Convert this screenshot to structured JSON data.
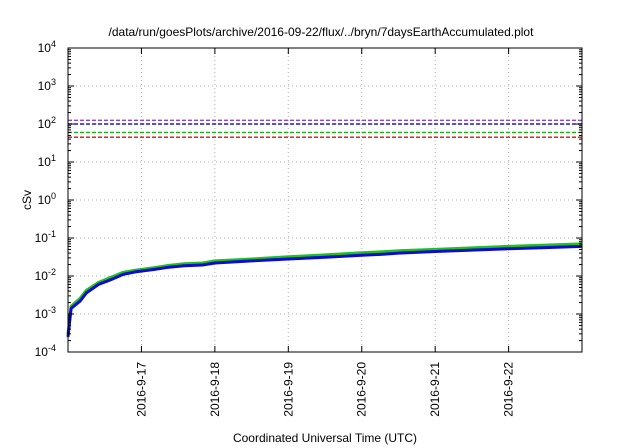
{
  "chart_data": {
    "type": "line",
    "title": "/data/run/goesPlots/archive/2016-09-22/flux/../bryn/7daysEarthAccumulated.plot",
    "xlabel": "Coordinated Universal Time (UTC)",
    "ylabel": "cSv",
    "yscale": "log",
    "ylim": [
      0.0001,
      10000
    ],
    "xlim": [
      "2016-09-16T00:00",
      "2016-09-22T23:59"
    ],
    "grid": true,
    "legend": "none",
    "y_ticks": [
      {
        "base": "10",
        "exp": "-4",
        "value": 0.0001
      },
      {
        "base": "10",
        "exp": "-3",
        "value": 0.001
      },
      {
        "base": "10",
        "exp": "-2",
        "value": 0.01
      },
      {
        "base": "10",
        "exp": "-1",
        "value": 0.1
      },
      {
        "base": "10",
        "exp": "0",
        "value": 1
      },
      {
        "base": "10",
        "exp": "1",
        "value": 10
      },
      {
        "base": "10",
        "exp": "2",
        "value": 100
      },
      {
        "base": "10",
        "exp": "3",
        "value": 1000
      },
      {
        "base": "10",
        "exp": "4",
        "value": 10000
      }
    ],
    "x_ticks": [
      {
        "label": "2016-9-17",
        "value": "2016-09-17T00:00"
      },
      {
        "label": "2016-9-18",
        "value": "2016-09-18T00:00"
      },
      {
        "label": "2016-9-19",
        "value": "2016-09-19T00:00"
      },
      {
        "label": "2016-9-20",
        "value": "2016-09-20T00:00"
      },
      {
        "label": "2016-9-21",
        "value": "2016-09-21T00:00"
      },
      {
        "label": "2016-9-22",
        "value": "2016-09-22T00:00"
      }
    ],
    "reference_lines": [
      {
        "value": 125,
        "color": "#8e44c9"
      },
      {
        "value": 100,
        "color": "#1a1acd"
      },
      {
        "value": 60,
        "color": "#18b518"
      },
      {
        "value": 45,
        "color": "#e01010"
      }
    ],
    "series": [
      {
        "color": "#1fc21f",
        "x": [
          "2016-09-16T00:00",
          "2016-09-16T01:00",
          "2016-09-16T04:00",
          "2016-09-16T06:00",
          "2016-09-16T10:00",
          "2016-09-16T14:00",
          "2016-09-16T18:00",
          "2016-09-16T22:00",
          "2016-09-17T04:00",
          "2016-09-17T09:00",
          "2016-09-17T14:00",
          "2016-09-17T20:00",
          "2016-09-18T00:00",
          "2016-09-18T12:00",
          "2016-09-19T00:00",
          "2016-09-19T12:00",
          "2016-09-20T00:00",
          "2016-09-20T06:00",
          "2016-09-20T12:00",
          "2016-09-21T00:00",
          "2016-09-21T12:00",
          "2016-09-22T00:00",
          "2016-09-22T12:00",
          "2016-09-22T23:59"
        ],
        "y": [
          0.0003,
          0.0016,
          0.0026,
          0.0042,
          0.0068,
          0.0092,
          0.0125,
          0.0142,
          0.0165,
          0.019,
          0.021,
          0.022,
          0.025,
          0.028,
          0.032,
          0.036,
          0.041,
          0.043,
          0.046,
          0.05,
          0.055,
          0.06,
          0.065,
          0.07
        ]
      },
      {
        "color": "#0a0ad2",
        "x": [
          "2016-09-16T00:00",
          "2016-09-16T01:00",
          "2016-09-16T04:00",
          "2016-09-16T06:00",
          "2016-09-16T10:00",
          "2016-09-16T14:00",
          "2016-09-16T18:00",
          "2016-09-16T22:00",
          "2016-09-17T04:00",
          "2016-09-17T09:00",
          "2016-09-17T14:00",
          "2016-09-17T20:00",
          "2016-09-18T00:00",
          "2016-09-18T12:00",
          "2016-09-19T00:00",
          "2016-09-19T12:00",
          "2016-09-20T00:00",
          "2016-09-20T06:00",
          "2016-09-20T12:00",
          "2016-09-21T00:00",
          "2016-09-21T12:00",
          "2016-09-22T00:00",
          "2016-09-22T12:00",
          "2016-09-22T23:59"
        ],
        "y": [
          0.00025,
          0.0014,
          0.0022,
          0.0036,
          0.006,
          0.008,
          0.011,
          0.0128,
          0.0148,
          0.017,
          0.0185,
          0.0195,
          0.022,
          0.025,
          0.028,
          0.031,
          0.035,
          0.037,
          0.04,
          0.044,
          0.048,
          0.052,
          0.056,
          0.06
        ]
      }
    ]
  }
}
